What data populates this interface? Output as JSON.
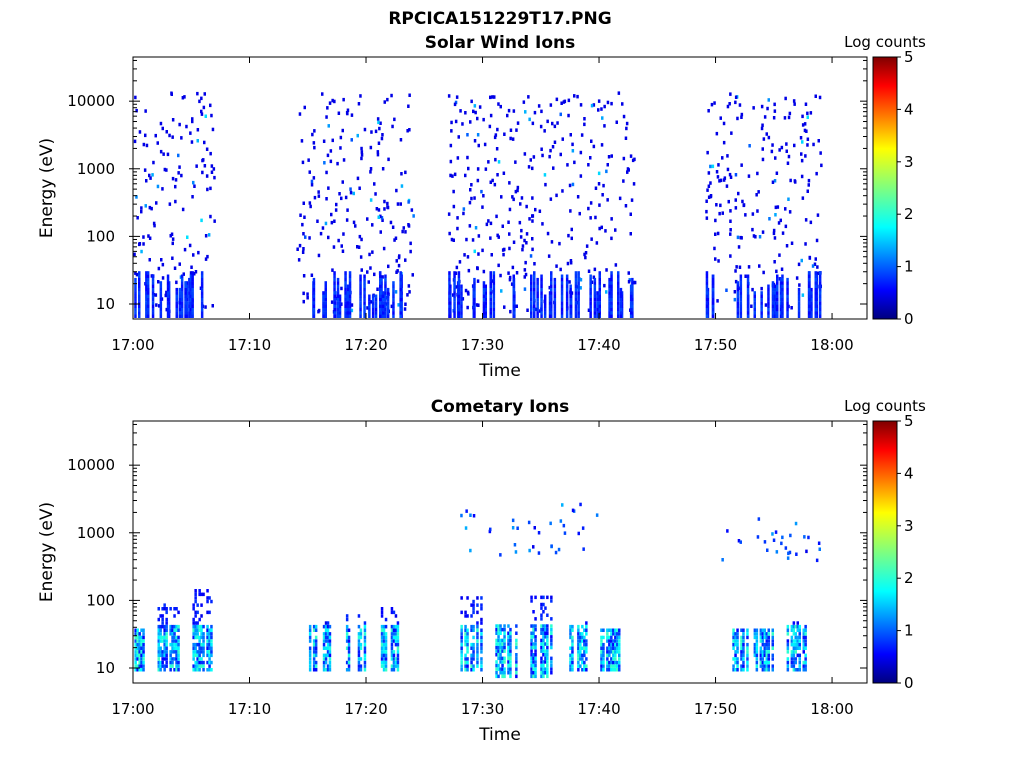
{
  "figure": {
    "title": "RPCICA151229T17.PNG"
  },
  "chart_data": [
    {
      "type": "heatmap",
      "title": "Solar Wind Ions",
      "xlabel": "Time",
      "ylabel": "Energy (eV)",
      "colorbar_label": "Log counts",
      "colorbar_ticks": [
        "0",
        "1",
        "2",
        "3",
        "4",
        "5"
      ],
      "colorbar_range": [
        0,
        5
      ],
      "x_ticks": [
        "17:00",
        "17:10",
        "17:20",
        "17:30",
        "17:40",
        "17:50",
        "18:00"
      ],
      "xlim_minutes": [
        0,
        63
      ],
      "y_scale": "log",
      "y_ticks": [
        "10",
        "100",
        "1000",
        "10000"
      ],
      "ylim": [
        6,
        45000
      ],
      "grid": false,
      "colormap": "jet",
      "active_intervals": [
        {
          "start": "17:00",
          "end": "17:07"
        },
        {
          "start": "17:14",
          "end": "17:24"
        },
        {
          "start": "17:27",
          "end": "17:43"
        },
        {
          "start": "17:49",
          "end": "17:59"
        }
      ]
    },
    {
      "type": "heatmap",
      "title": "Cometary Ions",
      "xlabel": "Time",
      "ylabel": "Energy (eV)",
      "colorbar_label": "Log counts",
      "colorbar_ticks": [
        "0",
        "1",
        "2",
        "3",
        "4",
        "5"
      ],
      "colorbar_range": [
        0,
        5
      ],
      "x_ticks": [
        "17:00",
        "17:10",
        "17:20",
        "17:30",
        "17:40",
        "17:50",
        "18:00"
      ],
      "xlim_minutes": [
        0,
        63
      ],
      "y_scale": "log",
      "y_ticks": [
        "10",
        "100",
        "1000",
        "10000"
      ],
      "ylim": [
        6,
        45000
      ],
      "grid": false,
      "colormap": "jet",
      "bursts": [
        {
          "time": "17:00",
          "energy_range": [
            10,
            40
          ]
        },
        {
          "time": "17:03",
          "energy_range": [
            10,
            100
          ]
        },
        {
          "time": "17:06",
          "energy_range": [
            10,
            160
          ]
        },
        {
          "time": "17:16",
          "energy_range": [
            10,
            70
          ]
        },
        {
          "time": "17:19",
          "energy_range": [
            10,
            80
          ]
        },
        {
          "time": "17:22",
          "energy_range": [
            10,
            90
          ]
        },
        {
          "time": "17:29",
          "energy_range": [
            10,
            120
          ]
        },
        {
          "time": "17:32",
          "energy_range": [
            8,
            50
          ]
        },
        {
          "time": "17:35",
          "energy_range": [
            8,
            120
          ]
        },
        {
          "time": "17:38",
          "energy_range": [
            10,
            50
          ]
        },
        {
          "time": "17:41",
          "energy_range": [
            10,
            40
          ]
        },
        {
          "time": "17:52",
          "energy_range": [
            10,
            40
          ]
        },
        {
          "time": "17:54",
          "energy_range": [
            10,
            40
          ]
        },
        {
          "time": "17:57",
          "energy_range": [
            10,
            50
          ]
        }
      ],
      "high_energy_scatter": [
        {
          "start": "17:28",
          "end": "17:40",
          "energy_range": [
            500,
            3000
          ]
        },
        {
          "start": "17:50",
          "end": "17:59",
          "energy_range": [
            400,
            1800
          ]
        }
      ]
    }
  ]
}
